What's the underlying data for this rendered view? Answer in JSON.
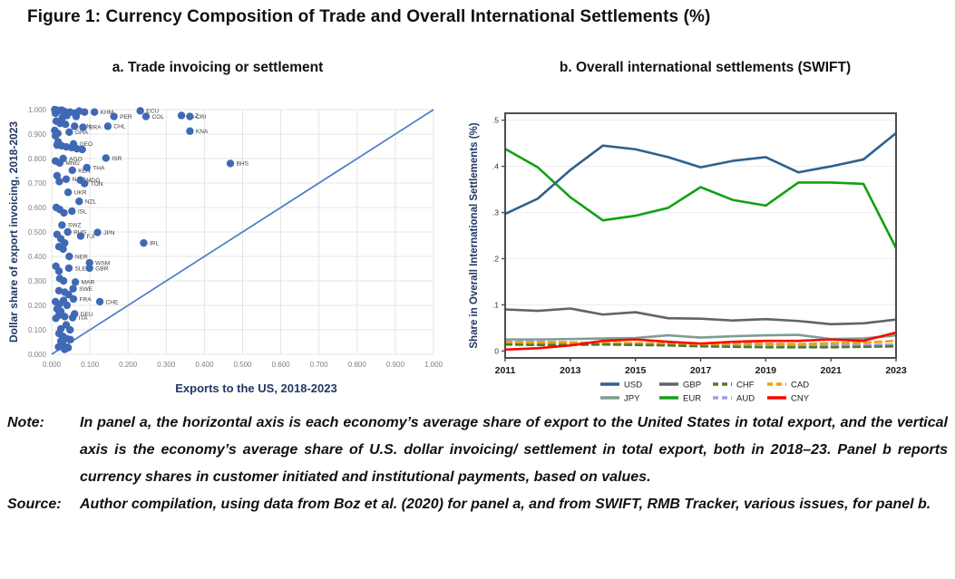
{
  "figure": {
    "title": "Figure 1: Currency Composition of Trade and Overall International Settlements (%)"
  },
  "panel_a": {
    "title": "a. Trade invoicing or settlement"
  },
  "panel_b": {
    "title": "b. Overall international settlements (SWIFT)"
  },
  "note": {
    "label": "Note:",
    "text": "In panel a, the horizontal axis is each economy’s average share of export to the United States in total export, and the vertical axis is the economy’s average share of U.S. dollar invoicing/ settlement in total export, both in 2018–23. Panel b reports currency shares in customer initiated and institutional payments, based on values."
  },
  "source": {
    "label": "Source:",
    "text": "Author compilation, using data from Boz et al. (2020) for panel a, and from SWIFT, RMB Tracker, various issues, for panel b."
  },
  "chart_data": [
    {
      "id": "panel_a",
      "type": "scatter",
      "title": "a. Trade invoicing or settlement",
      "xlabel": "Exports to the US, 2018-2023",
      "ylabel": "Dollar share of export invoicing, 2018-2023",
      "xlim": [
        0,
        1
      ],
      "ylim": [
        0,
        1
      ],
      "ticks": [
        0,
        0.1,
        0.2,
        0.3,
        0.4,
        0.5,
        0.6,
        0.7,
        0.8,
        0.9,
        1.0
      ],
      "tick_labels": [
        "0.000",
        "0.100",
        "0.200",
        "0.300",
        "0.400",
        "0.500",
        "0.600",
        "0.700",
        "0.800",
        "0.900",
        "1.000"
      ],
      "diagonal_line": "45-degree line from (0,0) to (1,1)",
      "colors": {
        "dot": "#3f69b4",
        "diagonal": "#4a7cc9",
        "grid": "#e4e4e4",
        "tick_text": "#808080",
        "axis_label": "#203864",
        "point_label": "#404040"
      },
      "points": [
        [
          0.112,
          0.99,
          "KHM"
        ],
        [
          0.232,
          0.995,
          "ECU"
        ],
        [
          0.247,
          0.972,
          "COL"
        ],
        [
          0.163,
          0.972,
          "PER"
        ],
        [
          0.34,
          0.976,
          "BLZ"
        ],
        [
          0.362,
          0.972,
          "CRI"
        ],
        [
          0.147,
          0.932,
          "CHL"
        ],
        [
          0.06,
          0.932,
          "IDN"
        ],
        [
          0.082,
          0.928,
          "BRA"
        ],
        [
          0.362,
          0.912,
          "KNA"
        ],
        [
          0.046,
          0.908,
          "GHA"
        ],
        [
          0.057,
          0.86,
          "GEO"
        ],
        [
          0.03,
          0.8,
          "AGO"
        ],
        [
          0.142,
          0.802,
          "ISR"
        ],
        [
          0.021,
          0.782,
          "MNG"
        ],
        [
          0.468,
          0.78,
          "BHS"
        ],
        [
          0.054,
          0.752,
          "KEN"
        ],
        [
          0.092,
          0.763,
          "THA"
        ],
        [
          0.038,
          0.716,
          "NAM"
        ],
        [
          0.075,
          0.712,
          "MDG"
        ],
        [
          0.086,
          0.698,
          "TON"
        ],
        [
          0.043,
          0.662,
          "UKR"
        ],
        [
          0.072,
          0.625,
          "NZL"
        ],
        [
          0.053,
          0.585,
          "ISL"
        ],
        [
          0.027,
          0.528,
          "SWZ"
        ],
        [
          0.042,
          0.5,
          "RUS"
        ],
        [
          0.076,
          0.483,
          "FJI"
        ],
        [
          0.12,
          0.498,
          "JPN"
        ],
        [
          0.241,
          0.455,
          "IRL"
        ],
        [
          0.046,
          0.4,
          "NER"
        ],
        [
          0.099,
          0.374,
          "WSM"
        ],
        [
          0.099,
          0.352,
          "GBR"
        ],
        [
          0.045,
          0.352,
          "SLE"
        ],
        [
          0.062,
          0.295,
          "MAR"
        ],
        [
          0.056,
          0.268,
          "SWE"
        ],
        [
          0.126,
          0.215,
          "CHE"
        ],
        [
          0.057,
          0.226,
          "FRA"
        ],
        [
          0.06,
          0.165,
          "DEU"
        ],
        [
          0.055,
          0.15,
          "ITA"
        ],
        [
          0.008,
          1.0,
          null
        ],
        [
          0.013,
          0.998,
          null
        ],
        [
          0.019,
          0.995,
          null
        ],
        [
          0.026,
          0.998,
          null
        ],
        [
          0.033,
          0.993,
          null
        ],
        [
          0.048,
          0.99,
          null
        ],
        [
          0.06,
          0.986,
          null
        ],
        [
          0.072,
          0.994,
          null
        ],
        [
          0.086,
          0.99,
          null
        ],
        [
          0.01,
          0.985,
          null
        ],
        [
          0.04,
          0.976,
          null
        ],
        [
          0.064,
          0.972,
          null
        ],
        [
          0.028,
          0.967,
          null
        ],
        [
          0.012,
          0.953,
          null
        ],
        [
          0.022,
          0.944,
          null
        ],
        [
          0.036,
          0.94,
          null
        ],
        [
          0.008,
          0.915,
          null
        ],
        [
          0.016,
          0.903,
          null
        ],
        [
          0.01,
          0.893,
          null
        ],
        [
          0.017,
          0.868,
          null
        ],
        [
          0.014,
          0.855,
          null
        ],
        [
          0.026,
          0.852,
          null
        ],
        [
          0.038,
          0.848,
          null
        ],
        [
          0.052,
          0.845,
          null
        ],
        [
          0.066,
          0.84,
          null
        ],
        [
          0.08,
          0.837,
          null
        ],
        [
          0.01,
          0.79,
          null
        ],
        [
          0.014,
          0.73,
          null
        ],
        [
          0.02,
          0.706,
          null
        ],
        [
          0.012,
          0.6,
          null
        ],
        [
          0.021,
          0.592,
          null
        ],
        [
          0.032,
          0.578,
          null
        ],
        [
          0.014,
          0.49,
          null
        ],
        [
          0.024,
          0.472,
          null
        ],
        [
          0.034,
          0.455,
          null
        ],
        [
          0.019,
          0.44,
          null
        ],
        [
          0.03,
          0.43,
          null
        ],
        [
          0.011,
          0.36,
          null
        ],
        [
          0.019,
          0.34,
          null
        ],
        [
          0.021,
          0.31,
          null
        ],
        [
          0.031,
          0.3,
          null
        ],
        [
          0.019,
          0.26,
          null
        ],
        [
          0.034,
          0.254,
          null
        ],
        [
          0.044,
          0.244,
          null
        ],
        [
          0.01,
          0.215,
          null
        ],
        [
          0.02,
          0.205,
          null
        ],
        [
          0.031,
          0.22,
          null
        ],
        [
          0.04,
          0.2,
          null
        ],
        [
          0.014,
          0.185,
          null
        ],
        [
          0.024,
          0.175,
          null
        ],
        [
          0.019,
          0.16,
          null
        ],
        [
          0.034,
          0.154,
          null
        ],
        [
          0.011,
          0.147,
          null
        ],
        [
          0.038,
          0.12,
          null
        ],
        [
          0.024,
          0.104,
          null
        ],
        [
          0.048,
          0.1,
          null
        ],
        [
          0.019,
          0.085,
          null
        ],
        [
          0.029,
          0.074,
          null
        ],
        [
          0.039,
          0.064,
          null
        ],
        [
          0.024,
          0.054,
          null
        ],
        [
          0.049,
          0.06,
          null
        ],
        [
          0.029,
          0.04,
          null
        ],
        [
          0.043,
          0.027,
          null
        ],
        [
          0.018,
          0.03,
          null
        ],
        [
          0.034,
          0.02,
          null
        ]
      ]
    },
    {
      "id": "panel_b",
      "type": "line",
      "title": "b. Overall international settlements (SWIFT)",
      "ylabel": "Share in Overall International Settlements (%)",
      "x": [
        2011,
        2012,
        2013,
        2014,
        2015,
        2016,
        2017,
        2018,
        2019,
        2020,
        2021,
        2022,
        2023
      ],
      "xticks": [
        2011,
        2013,
        2015,
        2017,
        2019,
        2021,
        2023
      ],
      "yticks": [
        0,
        0.1,
        0.2,
        0.3,
        0.4,
        0.5
      ],
      "ytick_labels": [
        "0",
        ".1",
        ".2",
        ".3",
        ".4",
        ".5"
      ],
      "ylim": [
        -0.015,
        0.515
      ],
      "grid": "horizontal light gridlines at each .1",
      "legend_rows": [
        [
          "USD",
          "GBP",
          "CHF",
          "CAD"
        ],
        [
          "JPY",
          "EUR",
          "AUD",
          "CNY"
        ]
      ],
      "draw_order": [
        "AUD",
        "CAD",
        "CHF",
        "JPY",
        "GBP",
        "EUR",
        "USD",
        "CNY"
      ],
      "series": [
        {
          "name": "USD",
          "color": "#2e618e",
          "dash": false,
          "values": [
            0.297,
            0.33,
            0.392,
            0.445,
            0.437,
            0.42,
            0.398,
            0.412,
            0.42,
            0.387,
            0.4,
            0.415,
            0.472
          ]
        },
        {
          "name": "EUR",
          "color": "#12a012",
          "dash": false,
          "values": [
            0.438,
            0.398,
            0.333,
            0.283,
            0.293,
            0.31,
            0.355,
            0.327,
            0.315,
            0.365,
            0.365,
            0.362,
            0.223
          ]
        },
        {
          "name": "GBP",
          "color": "#636363",
          "dash": false,
          "values": [
            0.09,
            0.087,
            0.092,
            0.079,
            0.084,
            0.071,
            0.07,
            0.066,
            0.069,
            0.065,
            0.058,
            0.06,
            0.068
          ]
        },
        {
          "name": "JPY",
          "color": "#7f9c94",
          "dash": false,
          "values": [
            0.025,
            0.025,
            0.026,
            0.027,
            0.028,
            0.034,
            0.029,
            0.032,
            0.034,
            0.035,
            0.026,
            0.027,
            0.034
          ]
        },
        {
          "name": "CHF",
          "color": "#4f7a2d",
          "dash": true,
          "values": [
            0.014,
            0.013,
            0.013,
            0.014,
            0.013,
            0.012,
            0.01,
            0.009,
            0.008,
            0.008,
            0.008,
            0.009,
            0.01
          ]
        },
        {
          "name": "AUD",
          "color": "#9e9ee0",
          "dash": true,
          "values": [
            0.02,
            0.02,
            0.019,
            0.016,
            0.015,
            0.014,
            0.013,
            0.013,
            0.013,
            0.012,
            0.012,
            0.013,
            0.014
          ]
        },
        {
          "name": "CAD",
          "color": "#efa000",
          "dash": true,
          "values": [
            0.018,
            0.018,
            0.018,
            0.017,
            0.017,
            0.016,
            0.015,
            0.016,
            0.016,
            0.015,
            0.017,
            0.018,
            0.022
          ]
        },
        {
          "name": "CNY",
          "color": "#fb0300",
          "dash": false,
          "values": [
            0.003,
            0.006,
            0.012,
            0.022,
            0.025,
            0.02,
            0.016,
            0.02,
            0.022,
            0.022,
            0.025,
            0.022,
            0.04
          ]
        }
      ],
      "colors": {
        "frame": "#4d4d4d",
        "grid": "#e7eff6",
        "tick_text": "#333333",
        "xtick_text": "#1a1a1a",
        "axis_label": "#203864",
        "legend_text": "#1a1a1a"
      }
    }
  ]
}
